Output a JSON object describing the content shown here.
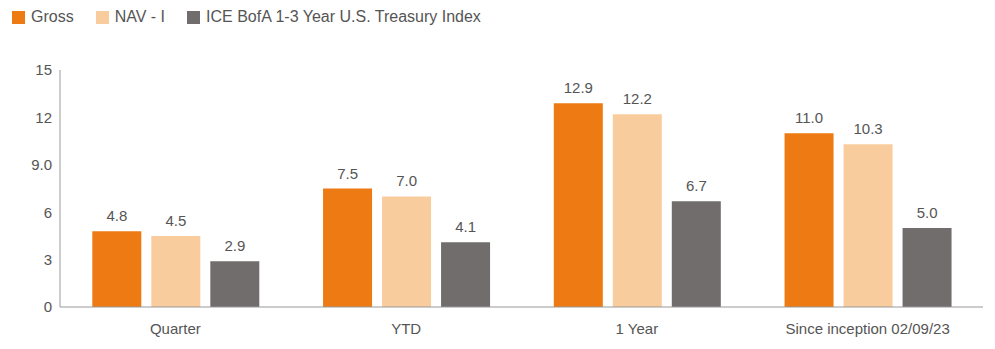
{
  "chart_data": {
    "type": "bar",
    "categories": [
      "Quarter",
      "YTD",
      "1 Year",
      "Since inception 02/09/23"
    ],
    "series": [
      {
        "name": "Gross",
        "color": "#ed7a12",
        "values": [
          4.8,
          7.5,
          12.9,
          11.0
        ],
        "value_labels": [
          "4.8",
          "7.5",
          "12.9",
          "11.0"
        ]
      },
      {
        "name": "NAV - I",
        "color": "#f9cc9e",
        "values": [
          4.5,
          7.0,
          12.2,
          10.3
        ],
        "value_labels": [
          "4.5",
          "7.0",
          "12.2",
          "10.3"
        ]
      },
      {
        "name": "ICE BofA 1-3 Year U.S. Treasury Index",
        "color": "#716d6d",
        "values": [
          2.9,
          4.1,
          6.7,
          5.0
        ],
        "value_labels": [
          "2.9",
          "4.1",
          "6.7",
          "5.0"
        ]
      }
    ],
    "ylim": [
      0,
      15
    ],
    "yticks": [
      0,
      3,
      6,
      {
        "value": 9,
        "label": "9.0"
      },
      12,
      15
    ],
    "grid": false,
    "legend": "top-left",
    "data_labels": true
  }
}
